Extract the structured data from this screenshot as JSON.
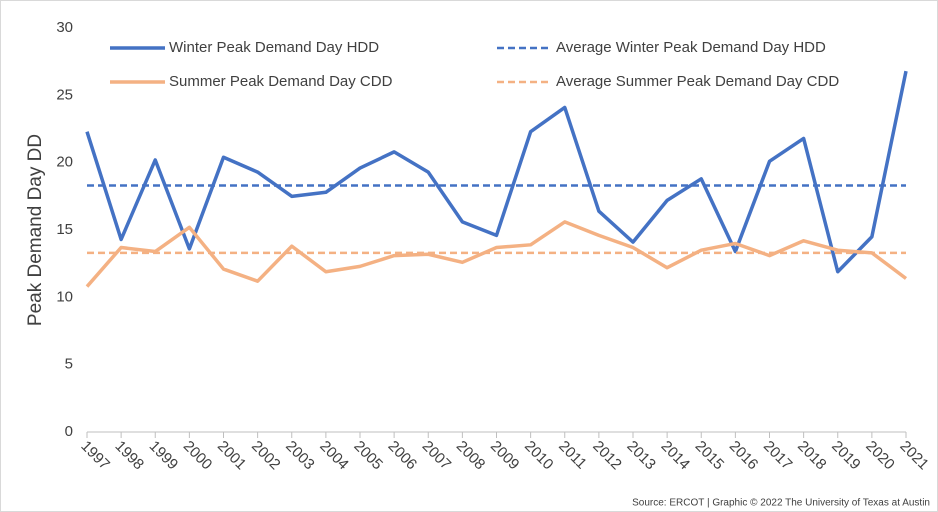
{
  "chart_data": {
    "type": "line",
    "y_label": "Peak Demand Day DD",
    "source": "Source: ERCOT | Graphic © 2022 The University of Texas at Austin",
    "categories": [
      "1997",
      "1998",
      "1999",
      "2000",
      "2001",
      "2002",
      "2003",
      "2004",
      "2005",
      "2006",
      "2007",
      "2008",
      "2009",
      "2010",
      "2011",
      "2012",
      "2013",
      "2014",
      "2015",
      "2016",
      "2017",
      "2018",
      "2019",
      "2020",
      "2021"
    ],
    "series": [
      {
        "name": "Winter Peak Demand Day HDD",
        "color": "#4472c4",
        "dashed": false,
        "values": [
          22.3,
          14.3,
          20.2,
          13.6,
          20.4,
          19.3,
          17.5,
          17.8,
          19.6,
          20.8,
          19.3,
          15.6,
          14.6,
          22.3,
          24.1,
          16.4,
          14.1,
          17.2,
          18.8,
          13.4,
          20.1,
          21.8,
          11.9,
          14.5,
          26.8
        ]
      },
      {
        "name": "Average Winter Peak Demand Day HDD",
        "color": "#4472c4",
        "dashed": true,
        "values": [
          18.3,
          18.3,
          18.3,
          18.3,
          18.3,
          18.3,
          18.3,
          18.3,
          18.3,
          18.3,
          18.3,
          18.3,
          18.3,
          18.3,
          18.3,
          18.3,
          18.3,
          18.3,
          18.3,
          18.3,
          18.3,
          18.3,
          18.3,
          18.3,
          18.3
        ]
      },
      {
        "name": "Summer Peak Demand Day CDD",
        "color": "#f4b183",
        "dashed": false,
        "values": [
          10.8,
          13.7,
          13.4,
          15.2,
          12.1,
          11.2,
          13.8,
          11.9,
          12.3,
          13.1,
          13.2,
          12.6,
          13.7,
          13.9,
          15.6,
          14.6,
          13.7,
          12.2,
          13.5,
          14.0,
          13.1,
          14.2,
          13.5,
          13.3,
          11.4
        ]
      },
      {
        "name": "Average Summer Peak Demand Day CDD",
        "color": "#f4b183",
        "dashed": true,
        "values": [
          13.3,
          13.3,
          13.3,
          13.3,
          13.3,
          13.3,
          13.3,
          13.3,
          13.3,
          13.3,
          13.3,
          13.3,
          13.3,
          13.3,
          13.3,
          13.3,
          13.3,
          13.3,
          13.3,
          13.3,
          13.3,
          13.3,
          13.3,
          13.3,
          13.3
        ]
      }
    ],
    "ylim": [
      0,
      30
    ],
    "yticks": [
      0,
      5,
      10,
      15,
      20,
      25,
      30
    ],
    "grid": false
  }
}
